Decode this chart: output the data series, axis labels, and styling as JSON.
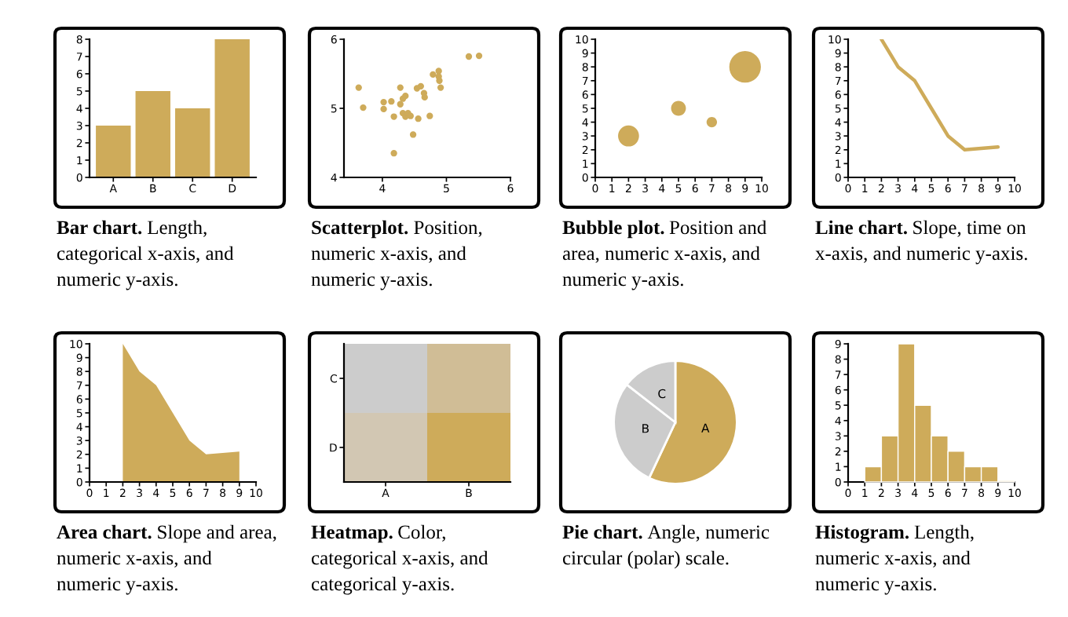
{
  "chart_data": [
    {
      "type": "bar",
      "title": "Bar chart.",
      "subtitle": "Length,\ncategorical x-axis, and\nnumeric y-axis.",
      "categories": [
        "A",
        "B",
        "C",
        "D"
      ],
      "values": [
        3,
        5,
        4,
        8
      ],
      "color": "#ceab5a",
      "ylim": [
        0,
        8
      ],
      "yticks": [
        0,
        1,
        2,
        3,
        4,
        5,
        6,
        7,
        8
      ]
    },
    {
      "type": "scatter",
      "title": "Scatterplot.",
      "subtitle": "Position,\nnumeric x-axis, and\nnumeric y-axis.",
      "marker": "circle",
      "color": "#ceab5a",
      "xlim": [
        3.4,
        6
      ],
      "xticks": [
        4,
        5,
        6
      ],
      "ylim": [
        4,
        6
      ],
      "yticks": [
        4,
        5,
        6
      ],
      "x": [
        3.63,
        3.7,
        4.02,
        4.02,
        4.14,
        4.18,
        4.18,
        4.28,
        4.28,
        4.32,
        4.36,
        4.32,
        4.36,
        4.4,
        4.44,
        4.48,
        4.56,
        4.54,
        4.6,
        4.65,
        4.66,
        4.74,
        4.79,
        4.88,
        4.88,
        4.89,
        4.91,
        5.35,
        5.51
      ],
      "values": [
        5.3,
        5.01,
        5.09,
        4.99,
        5.1,
        4.88,
        4.35,
        5.3,
        5.06,
        5.14,
        5.18,
        4.93,
        4.88,
        4.93,
        4.89,
        4.62,
        4.85,
        5.29,
        5.32,
        5.22,
        5.16,
        4.89,
        5.49,
        5.54,
        5.46,
        5.4,
        5.3,
        5.75,
        5.76
      ]
    },
    {
      "type": "bubble",
      "title": "Bubble plot.",
      "subtitle": "Position and\narea, numeric x-axis, and\nnumeric y-axis.",
      "color": "#ceab5a",
      "x": [
        2,
        5,
        7,
        9
      ],
      "values": [
        3,
        5,
        4,
        8
      ],
      "sizes": [
        0.44,
        0.22,
        0.11,
        1
      ],
      "xlim": [
        0,
        10
      ],
      "xticks": [
        0,
        1,
        2,
        3,
        4,
        5,
        6,
        7,
        8,
        9,
        10
      ],
      "ylim": [
        0,
        10
      ],
      "yticks": [
        0,
        1,
        2,
        3,
        4,
        5,
        6,
        7,
        8,
        9,
        10
      ]
    },
    {
      "type": "line",
      "title": "Line chart.",
      "subtitle": "Slope, time on\nx-axis, and numeric y-axis.",
      "color": "#ceab5a",
      "line_style": "solid",
      "x": [
        2,
        3,
        4,
        5,
        6,
        7,
        8,
        9
      ],
      "values": [
        10,
        8,
        7,
        5,
        3,
        2,
        2.1,
        2.2
      ],
      "xlim": [
        0,
        10
      ],
      "xticks": [
        0,
        1,
        2,
        3,
        4,
        5,
        6,
        7,
        8,
        9,
        10
      ],
      "ylim": [
        0,
        10
      ],
      "yticks": [
        0,
        1,
        2,
        3,
        4,
        5,
        6,
        7,
        8,
        9,
        10
      ]
    },
    {
      "type": "area",
      "title": "Area chart.",
      "subtitle": "Slope and area,\nnumeric x-axis, and\nnumeric y-axis.",
      "color": "#ceab5a",
      "x": [
        2,
        3,
        4,
        5,
        6,
        7,
        8,
        9
      ],
      "values": [
        10,
        8,
        7,
        5,
        3,
        2,
        2.1,
        2.2
      ],
      "xlim": [
        0,
        10
      ],
      "xticks": [
        0,
        1,
        2,
        3,
        4,
        5,
        6,
        7,
        8,
        9,
        10
      ],
      "ylim": [
        0,
        10
      ],
      "yticks": [
        0,
        1,
        2,
        3,
        4,
        5,
        6,
        7,
        8,
        9,
        10
      ]
    },
    {
      "type": "other",
      "title": "Heatmap.",
      "subtitle": "Color,\ncategorical x-axis, and\ncategorical y-axis.",
      "categories": [
        "A",
        "B"
      ],
      "y_categories": [
        "C",
        "D"
      ],
      "colors": [
        [
          "#cccccc",
          "#d0bd96"
        ],
        [
          "#d2c7b3",
          "#ceab5a"
        ]
      ]
    },
    {
      "type": "pie",
      "title": "Pie chart.",
      "subtitle": "Angle, numeric\ncircular (polar) scale.",
      "categories": [
        "A",
        "B",
        "C"
      ],
      "values": [
        57,
        28.5,
        14.5
      ],
      "colors": [
        "#ceab5a",
        "#cccccc",
        "#cccccc"
      ]
    },
    {
      "type": "histogram",
      "title": "Histogram.",
      "subtitle": "Length,\nnumeric x-axis, and\nnumeric y-axis.",
      "bins": [
        1,
        2,
        3,
        4,
        5,
        6,
        7,
        8,
        9,
        10
      ],
      "values": [
        1,
        3,
        9,
        5,
        3,
        2,
        1,
        1,
        0.1
      ],
      "colors": [
        "#ceab5a",
        "#ceab5a",
        "#ceab5a",
        "#ceab5a",
        "#ceab5a",
        "#ceab5a",
        "#ceab5a",
        "#ceab5a",
        "#ecdcb4"
      ],
      "xlim": [
        0,
        10
      ],
      "xticks": [
        0,
        1,
        2,
        3,
        4,
        5,
        6,
        7,
        8,
        9,
        10
      ],
      "ylim": [
        0,
        9
      ],
      "yticks": [
        0,
        1,
        2,
        3,
        4,
        5,
        6,
        7,
        8,
        9
      ]
    }
  ]
}
